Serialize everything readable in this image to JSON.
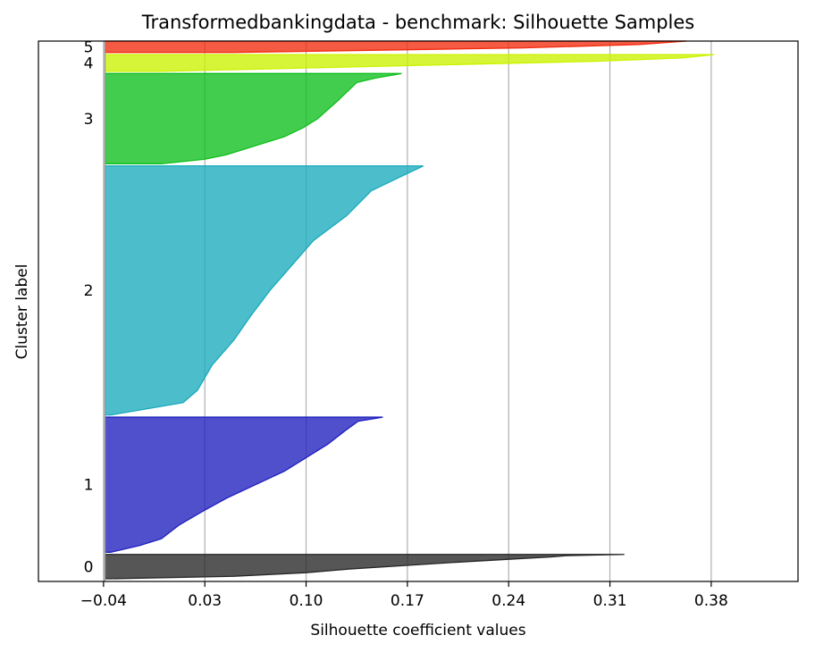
{
  "chart_data": {
    "type": "area",
    "title": "Transformedbankingdata - benchmark: Silhouette Samples",
    "xlabel": "Silhouette coefficient values",
    "ylabel": "Cluster label",
    "xlim": [
      -0.085,
      0.44
    ],
    "x_ticks": [
      -0.04,
      0.03,
      0.1,
      0.17,
      0.24,
      0.31,
      0.38
    ],
    "x_tick_labels": [
      "−0.04",
      "0.03",
      "0.10",
      "0.17",
      "0.24",
      "0.31",
      "0.38"
    ],
    "grid": "vertical",
    "baseline": -0.039,
    "y_total": 1000,
    "clusters": [
      {
        "label": "0",
        "color": "#262626",
        "y_range": [
          5,
          50
        ],
        "profile": [
          [
            0,
            0.32
          ],
          [
            0.05,
            0.28
          ],
          [
            0.1,
            0.27
          ],
          [
            0.2,
            0.24
          ],
          [
            0.3,
            0.21
          ],
          [
            0.45,
            0.17
          ],
          [
            0.6,
            0.13
          ],
          [
            0.75,
            0.1
          ],
          [
            0.9,
            0.05
          ],
          [
            1,
            -0.035
          ]
        ]
      },
      {
        "label": "1",
        "color": "#1f1fbf",
        "y_range": [
          54,
          304
        ],
        "profile": [
          [
            0,
            0.153
          ],
          [
            0.03,
            0.136
          ],
          [
            0.1,
            0.127
          ],
          [
            0.2,
            0.115
          ],
          [
            0.3,
            0.1
          ],
          [
            0.4,
            0.085
          ],
          [
            0.5,
            0.065
          ],
          [
            0.6,
            0.045
          ],
          [
            0.7,
            0.028
          ],
          [
            0.8,
            0.012
          ],
          [
            0.9,
            0.0
          ],
          [
            0.95,
            -0.015
          ],
          [
            1,
            -0.035
          ]
        ]
      },
      {
        "label": "2",
        "color": "#1aaabd",
        "y_range": [
          308,
          769
        ],
        "profile": [
          [
            0,
            0.181
          ],
          [
            0.05,
            0.163
          ],
          [
            0.1,
            0.145
          ],
          [
            0.2,
            0.128
          ],
          [
            0.3,
            0.105
          ],
          [
            0.4,
            0.09
          ],
          [
            0.5,
            0.075
          ],
          [
            0.6,
            0.062
          ],
          [
            0.7,
            0.05
          ],
          [
            0.8,
            0.035
          ],
          [
            0.9,
            0.025
          ],
          [
            0.95,
            0.015
          ],
          [
            1,
            -0.035
          ]
        ]
      },
      {
        "label": "3",
        "color": "#0ebf1c",
        "y_range": [
          773,
          940
        ],
        "profile": [
          [
            0,
            0.166
          ],
          [
            0.05,
            0.148
          ],
          [
            0.1,
            0.135
          ],
          [
            0.3,
            0.122
          ],
          [
            0.5,
            0.108
          ],
          [
            0.6,
            0.098
          ],
          [
            0.7,
            0.085
          ],
          [
            0.8,
            0.065
          ],
          [
            0.9,
            0.045
          ],
          [
            0.95,
            0.03
          ],
          [
            1,
            0.0
          ]
        ]
      },
      {
        "label": "4",
        "color": "#ccf200",
        "y_range": [
          944,
          975
        ],
        "profile": [
          [
            0,
            0.382
          ],
          [
            0.2,
            0.36
          ],
          [
            0.4,
            0.3
          ],
          [
            0.6,
            0.2
          ],
          [
            0.8,
            0.1
          ],
          [
            1,
            0.0
          ]
        ]
      },
      {
        "label": "5",
        "color": "#f22b0e",
        "y_range": [
          979,
          1000
        ],
        "profile": [
          [
            0,
            0.363
          ],
          [
            0.3,
            0.33
          ],
          [
            0.6,
            0.25
          ],
          [
            0.8,
            0.15
          ],
          [
            1,
            0.05
          ]
        ]
      }
    ]
  }
}
